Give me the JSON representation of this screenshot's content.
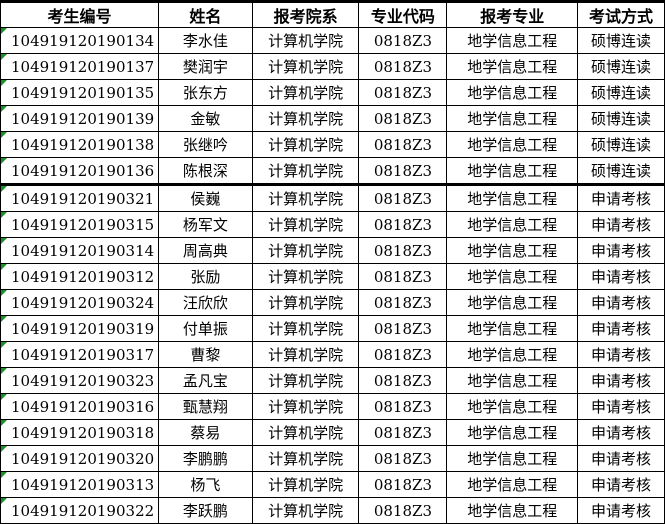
{
  "headers": [
    "考生编号",
    "姓名",
    "报考院系",
    "专业代码",
    "报考专业",
    "考试方式"
  ],
  "rows": [
    [
      "104919120190134",
      "李水佳",
      "计算机学院",
      "0818Z3",
      "地学信息工程",
      "硕博连读"
    ],
    [
      "104919120190137",
      "樊润宇",
      "计算机学院",
      "0818Z3",
      "地学信息工程",
      "硕博连读"
    ],
    [
      "104919120190135",
      "张东方",
      "计算机学院",
      "0818Z3",
      "地学信息工程",
      "硕博连读"
    ],
    [
      "104919120190139",
      "金敏",
      "计算机学院",
      "0818Z3",
      "地学信息工程",
      "硕博连读"
    ],
    [
      "104919120190138",
      "张继吟",
      "计算机学院",
      "0818Z3",
      "地学信息工程",
      "硕博连读"
    ],
    [
      "104919120190136",
      "陈根深",
      "计算机学院",
      "0818Z3",
      "地学信息工程",
      "硕博连读"
    ],
    [
      "104919120190321",
      "侯巍",
      "计算机学院",
      "0818Z3",
      "地学信息工程",
      "申请考核"
    ],
    [
      "104919120190315",
      "杨军文",
      "计算机学院",
      "0818Z3",
      "地学信息工程",
      "申请考核"
    ],
    [
      "104919120190314",
      "周高典",
      "计算机学院",
      "0818Z3",
      "地学信息工程",
      "申请考核"
    ],
    [
      "104919120190312",
      "张励",
      "计算机学院",
      "0818Z3",
      "地学信息工程",
      "申请考核"
    ],
    [
      "104919120190324",
      "汪欣欣",
      "计算机学院",
      "0818Z3",
      "地学信息工程",
      "申请考核"
    ],
    [
      "104919120190319",
      "付单振",
      "计算机学院",
      "0818Z3",
      "地学信息工程",
      "申请考核"
    ],
    [
      "104919120190317",
      "曹黎",
      "计算机学院",
      "0818Z3",
      "地学信息工程",
      "申请考核"
    ],
    [
      "104919120190323",
      "孟凡宝",
      "计算机学院",
      "0818Z3",
      "地学信息工程",
      "申请考核"
    ],
    [
      "104919120190316",
      "甄慧翔",
      "计算机学院",
      "0818Z3",
      "地学信息工程",
      "申请考核"
    ],
    [
      "104919120190318",
      "蔡易",
      "计算机学院",
      "0818Z3",
      "地学信息工程",
      "申请考核"
    ],
    [
      "104919120190320",
      "李鹏鹏",
      "计算机学院",
      "0818Z3",
      "地学信息工程",
      "申请考核"
    ],
    [
      "104919120190313",
      "杨飞",
      "计算机学院",
      "0818Z3",
      "地学信息工程",
      "申请考核"
    ],
    [
      "104919120190322",
      "李跃鹏",
      "计算机学院",
      "0818Z3",
      "地学信息工程",
      "申请考核"
    ]
  ],
  "colors": {
    "comment_marker": "#1a8f2a"
  }
}
